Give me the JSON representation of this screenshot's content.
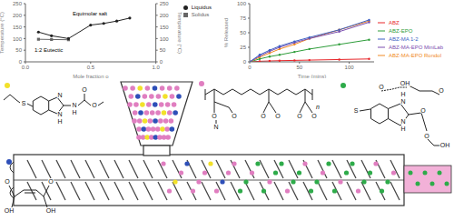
{
  "chart_data": [
    {
      "type": "line",
      "x_label": "Mole fraction o",
      "y_label": "Temperature (°C)",
      "y2_label": "Temperature (°C)",
      "x": [
        0.1,
        0.2,
        0.33,
        0.5,
        0.6,
        0.7,
        0.8
      ],
      "xlim": [
        0,
        1
      ],
      "xticks": [
        {
          "value": 0,
          "label": "0.0"
        },
        {
          "value": 0.5,
          "label": "0.5"
        },
        {
          "value": 1,
          "label": "1.0"
        }
      ],
      "ylim": [
        0,
        250
      ],
      "yticks": [
        0,
        50,
        100,
        150,
        200,
        250
      ],
      "y2lim": [
        0,
        250
      ],
      "y2ticks": [
        0,
        50,
        100,
        150,
        200,
        250
      ],
      "legend": "upper right",
      "annotations": [
        "Equimolar salt",
        "1:2 Eutectic"
      ],
      "series": [
        {
          "name": "Solidus",
          "color": "#666666",
          "marker": "square",
          "values": [
            97,
            96,
            95,
            null,
            null,
            null,
            null
          ]
        },
        {
          "name": "Liquidus",
          "color": "#222222",
          "marker": "circle",
          "axis": "y2",
          "values": [
            128,
            112,
            100,
            158,
            165,
            175,
            188
          ]
        }
      ]
    },
    {
      "type": "line",
      "x_label": "Time (mins)",
      "y_label": "% Released",
      "x": [
        0,
        10,
        20,
        30,
        45,
        60,
        90,
        120
      ],
      "xlim": [
        0,
        125
      ],
      "xticks": [
        0,
        50,
        100
      ],
      "ylim": [
        0,
        100
      ],
      "yticks": [
        0,
        25,
        50,
        75,
        100
      ],
      "legend": "right",
      "series": [
        {
          "name": "ABZ",
          "color": "#e8262a",
          "marker": "circle",
          "values": [
            0,
            1,
            1.5,
            2,
            2.5,
            3,
            4,
            5
          ]
        },
        {
          "name": "ABZ-EPO",
          "color": "#2e9d3a",
          "marker": "circle",
          "values": [
            0,
            5,
            9,
            12,
            17,
            22,
            30,
            38
          ]
        },
        {
          "name": "ABZ-MA-EPO Rondol",
          "color": "#f08a24",
          "marker": "circle",
          "values": [
            0,
            8,
            15,
            22,
            30,
            40,
            55,
            70
          ]
        },
        {
          "name": "ABZ-MA-EPO MiniLab",
          "color": "#7b4fb0",
          "marker": "circle",
          "values": [
            0,
            10,
            18,
            25,
            33,
            40,
            52,
            68
          ]
        },
        {
          "name": "ABZ-MA 1-2",
          "color": "#3b5fc4",
          "marker": "circle",
          "values": [
            0,
            12,
            20,
            27,
            35,
            42,
            55,
            72
          ]
        }
      ]
    }
  ],
  "diagram": {
    "structures": [
      {
        "atoms": [
          "S",
          "N",
          "N",
          "H",
          "N",
          "H",
          "O",
          "O"
        ]
      },
      {
        "atoms": [
          "O",
          "OH",
          "O",
          "OH"
        ]
      },
      {
        "atoms": [
          "O",
          "O",
          "N",
          "O",
          "O",
          "O",
          "O",
          "n"
        ]
      },
      {
        "atoms": [
          "S",
          "N",
          "H",
          "N",
          "H",
          "O",
          "O",
          "O",
          "OH",
          "O",
          "OH"
        ]
      }
    ]
  }
}
